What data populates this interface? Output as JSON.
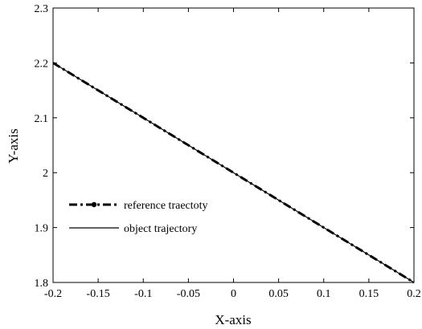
{
  "chart_data": {
    "type": "line",
    "title": "",
    "xlabel": "X-axis",
    "ylabel": "Y-axis",
    "xlim": [
      -0.2,
      0.2
    ],
    "ylim": [
      1.8,
      2.3
    ],
    "x_ticks": [
      -0.2,
      -0.15,
      -0.1,
      -0.05,
      0,
      0.05,
      0.1,
      0.15,
      0.2
    ],
    "x_tick_labels": [
      "-0.2",
      "-0.15",
      "-0.1",
      "-0.05",
      "0",
      "0.05",
      "0.1",
      "0.15",
      "0.2"
    ],
    "y_ticks": [
      1.8,
      1.9,
      2.0,
      2.1,
      2.2,
      2.3
    ],
    "y_tick_labels": [
      "1.8",
      "1.9",
      "2",
      "2.1",
      "2.2",
      "2.3"
    ],
    "grid": false,
    "legend_position": "left",
    "series": [
      {
        "name": "reference traectoty",
        "style": "dash-dot with dot markers",
        "color": "#000000",
        "x": [
          -0.2,
          -0.15,
          -0.1,
          -0.05,
          0,
          0.05,
          0.1,
          0.15,
          0.2
        ],
        "y": [
          2.2,
          2.15,
          2.1,
          2.05,
          2.0,
          1.95,
          1.9,
          1.85,
          1.8
        ]
      },
      {
        "name": "object trajectory",
        "style": "solid",
        "color": "#000000",
        "x": [
          -0.2,
          -0.15,
          -0.1,
          -0.05,
          0,
          0.05,
          0.1,
          0.15,
          0.2
        ],
        "y": [
          2.2,
          2.15,
          2.1,
          2.05,
          2.0,
          1.95,
          1.9,
          1.85,
          1.8
        ]
      }
    ]
  }
}
